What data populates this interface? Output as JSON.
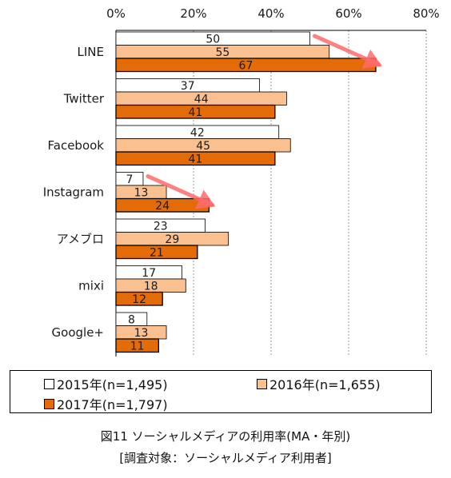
{
  "chart_data": {
    "type": "bar",
    "orientation": "horizontal",
    "categories": [
      "LINE",
      "Twitter",
      "Facebook",
      "Instagram",
      "アメブロ",
      "mixi",
      "Google+"
    ],
    "series": [
      {
        "name": "2015年(n=1,495)",
        "values": [
          50,
          37,
          42,
          7,
          23,
          17,
          8
        ],
        "color": "#ffffff"
      },
      {
        "name": "2016年(n=1,655)",
        "values": [
          55,
          44,
          45,
          13,
          29,
          18,
          13
        ],
        "color": "#fac090"
      },
      {
        "name": "2017年(n=1,797)",
        "values": [
          67,
          41,
          41,
          24,
          21,
          12,
          11
        ],
        "color": "#e36c09"
      }
    ],
    "x_ticks": [
      "0%",
      "20%",
      "40%",
      "60%",
      "80%"
    ],
    "xlim": [
      0,
      80
    ],
    "grid": true,
    "legend_position": "bottom",
    "annotations": [
      {
        "type": "trend-arrow",
        "category": "LINE",
        "from_value": 50,
        "to_value": 67,
        "color": "#ff6b6b"
      },
      {
        "type": "trend-arrow",
        "category": "Instagram",
        "from_value": 7,
        "to_value": 24,
        "color": "#ff6b6b"
      }
    ]
  },
  "caption": {
    "line1": "図11 ソーシャルメディアの利用率(MA・年別)",
    "line2": "[調査対象：ソーシャルメディア利用者]"
  }
}
